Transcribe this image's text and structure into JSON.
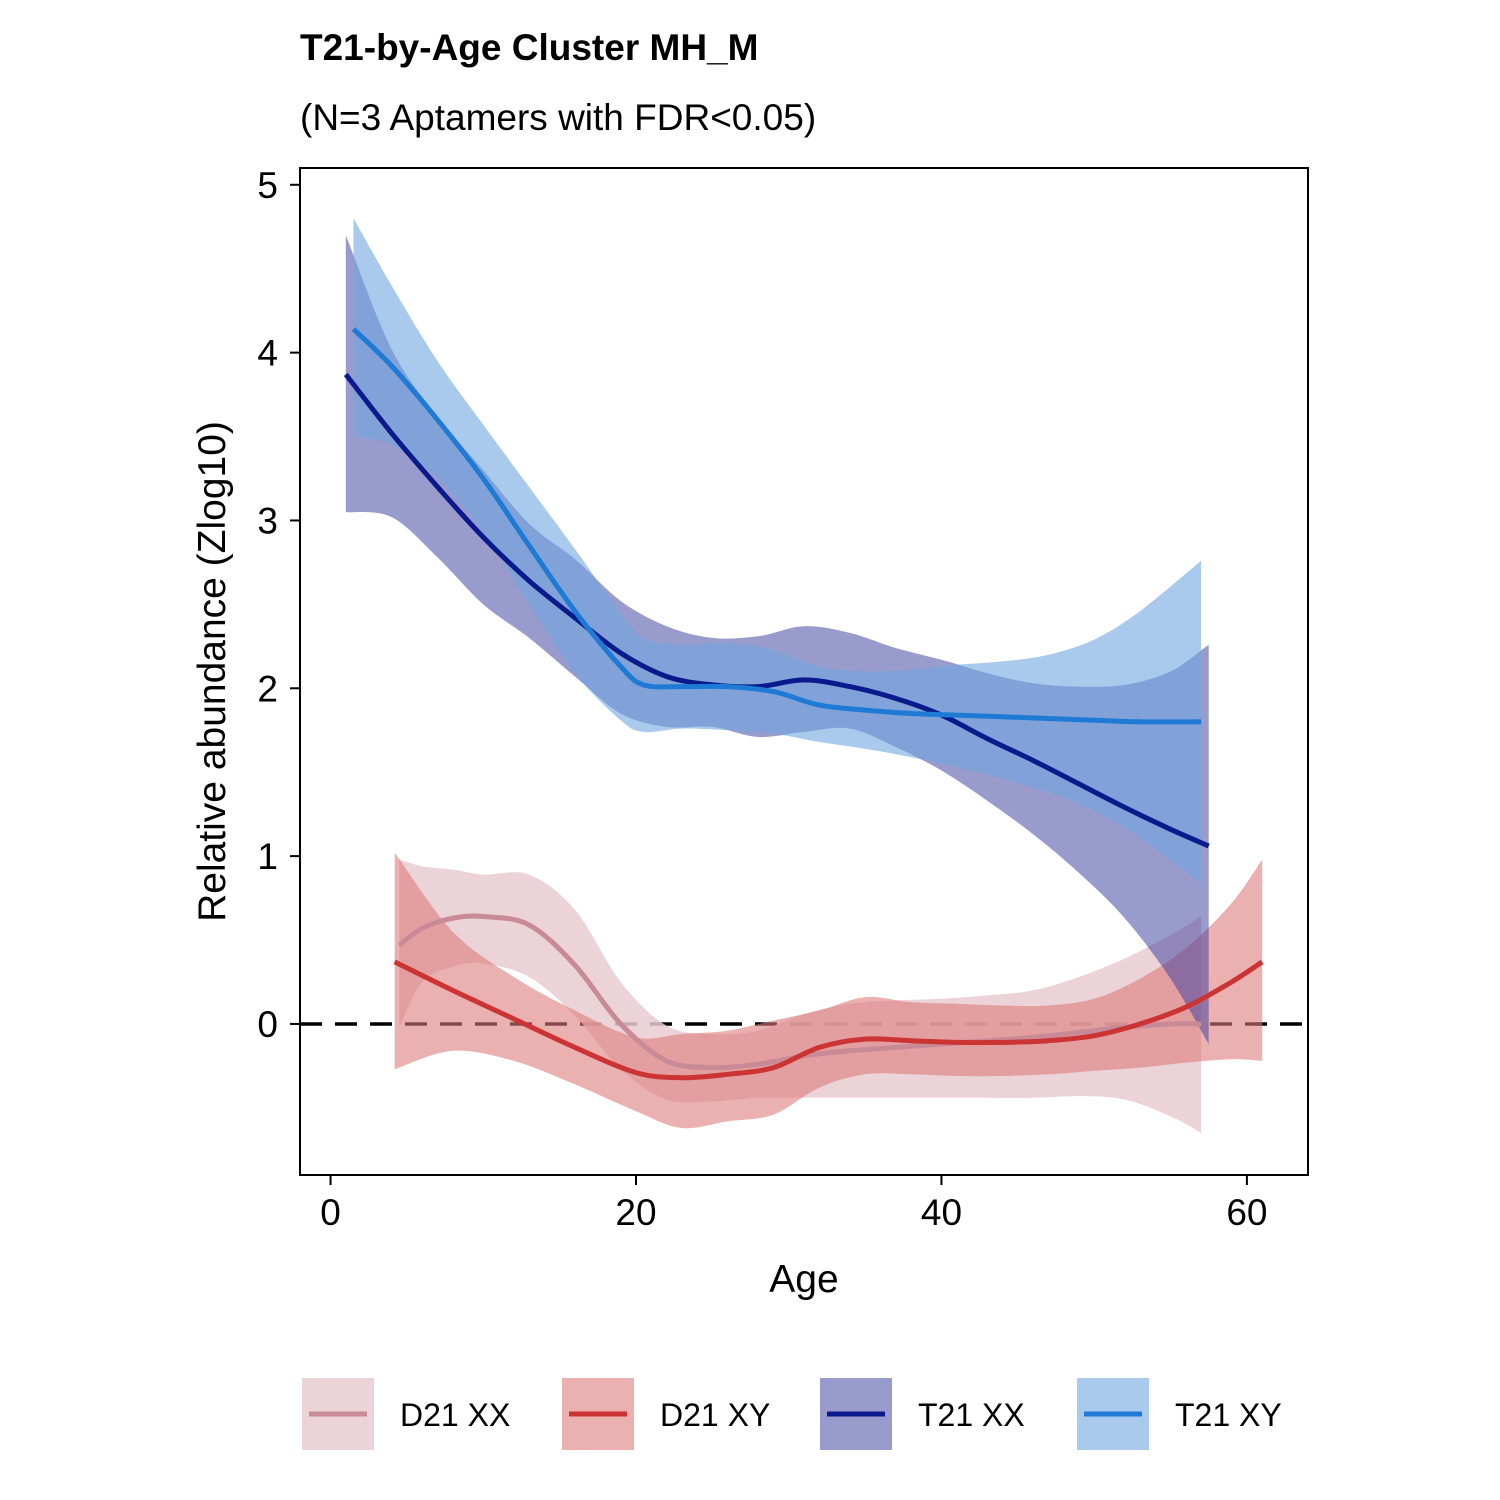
{
  "chart_data": {
    "type": "line",
    "title": "T21-by-Age Cluster MH_M",
    "subtitle": "(N=3 Aptamers with FDR<0.05)",
    "xlabel": "Age",
    "ylabel": "Relative abundance (Zlog10)",
    "xlim": [
      -2,
      64
    ],
    "ylim": [
      -0.9,
      5.1
    ],
    "xticks": [
      0,
      20,
      40,
      60
    ],
    "yticks": [
      0,
      1,
      2,
      3,
      4,
      5
    ],
    "reference_line": {
      "y": 0,
      "style": "dashed"
    },
    "grid": false,
    "legend_position": "bottom",
    "series": [
      {
        "name": "D21 XX",
        "color": "#C98A97",
        "band_color": "#E8CBD1",
        "band_opacity": 0.85,
        "x": [
          4.5,
          6,
          8,
          10,
          13,
          16,
          19,
          22,
          25,
          28,
          31,
          34,
          37,
          40,
          43,
          46,
          49,
          52,
          55,
          57
        ],
        "y": [
          0.47,
          0.57,
          0.63,
          0.64,
          0.59,
          0.35,
          0.0,
          -0.22,
          -0.26,
          -0.24,
          -0.19,
          -0.16,
          -0.14,
          -0.12,
          -0.1,
          -0.08,
          -0.05,
          -0.02,
          0.0,
          0.0
        ],
        "lower": [
          -0.02,
          0.25,
          0.34,
          0.36,
          0.28,
          0.05,
          -0.27,
          -0.45,
          -0.46,
          -0.44,
          -0.44,
          -0.44,
          -0.44,
          -0.44,
          -0.44,
          -0.44,
          -0.43,
          -0.45,
          -0.55,
          -0.65
        ],
        "upper": [
          0.98,
          0.94,
          0.92,
          0.89,
          0.89,
          0.68,
          0.25,
          -0.01,
          -0.06,
          -0.04,
          0.06,
          0.12,
          0.14,
          0.15,
          0.17,
          0.2,
          0.28,
          0.39,
          0.53,
          0.64
        ]
      },
      {
        "name": "D21 XY",
        "color": "#CC3333",
        "band_color": "#DE7B7B",
        "band_opacity": 0.6,
        "x": [
          4.2,
          8,
          12,
          16,
          20,
          23,
          26,
          29,
          32,
          35,
          38,
          41,
          44,
          47,
          50,
          53,
          56,
          59,
          61
        ],
        "y": [
          0.37,
          0.2,
          0.03,
          -0.14,
          -0.29,
          -0.32,
          -0.3,
          -0.26,
          -0.14,
          -0.09,
          -0.1,
          -0.11,
          -0.11,
          -0.1,
          -0.07,
          0.0,
          0.1,
          0.25,
          0.37
        ],
        "lower": [
          -0.27,
          -0.16,
          -0.22,
          -0.36,
          -0.52,
          -0.62,
          -0.58,
          -0.54,
          -0.38,
          -0.3,
          -0.3,
          -0.31,
          -0.31,
          -0.3,
          -0.28,
          -0.26,
          -0.23,
          -0.21,
          -0.22
        ],
        "upper": [
          1.02,
          0.55,
          0.28,
          0.08,
          -0.08,
          -0.06,
          -0.04,
          0.02,
          0.08,
          0.16,
          0.13,
          0.12,
          0.11,
          0.11,
          0.15,
          0.27,
          0.45,
          0.72,
          0.98
        ]
      },
      {
        "name": "T21 XX",
        "color": "#0A1A8C",
        "band_color": "#3D40A0",
        "band_opacity": 0.52,
        "x": [
          1,
          4,
          7,
          10,
          13,
          16,
          19,
          22,
          25,
          28,
          31,
          34,
          37,
          40,
          43,
          46,
          49,
          52,
          55,
          57.5
        ],
        "y": [
          3.87,
          3.52,
          3.2,
          2.9,
          2.64,
          2.42,
          2.21,
          2.07,
          2.02,
          2.01,
          2.05,
          2.01,
          1.94,
          1.84,
          1.7,
          1.57,
          1.43,
          1.29,
          1.16,
          1.06
        ],
        "lower": [
          3.05,
          3.02,
          2.78,
          2.5,
          2.3,
          2.07,
          1.85,
          1.77,
          1.77,
          1.71,
          1.74,
          1.76,
          1.65,
          1.51,
          1.33,
          1.13,
          0.9,
          0.63,
          0.27,
          -0.12
        ],
        "upper": [
          4.7,
          4.02,
          3.62,
          3.3,
          2.98,
          2.77,
          2.52,
          2.37,
          2.3,
          2.31,
          2.37,
          2.33,
          2.24,
          2.17,
          2.09,
          2.03,
          2.01,
          2.02,
          2.1,
          2.26
        ]
      },
      {
        "name": "T21 XY",
        "color": "#1F7AD6",
        "band_color": "#6FA7E0",
        "band_opacity": 0.6,
        "x": [
          1.5,
          4,
          7,
          10,
          13,
          16,
          19,
          20.5,
          23,
          26,
          29,
          32,
          35,
          38,
          41,
          44,
          47,
          50,
          53,
          57
        ],
        "y": [
          4.14,
          3.92,
          3.6,
          3.25,
          2.85,
          2.46,
          2.13,
          2.02,
          2.01,
          2.01,
          1.98,
          1.9,
          1.87,
          1.85,
          1.84,
          1.83,
          1.82,
          1.81,
          1.8,
          1.8
        ],
        "lower": [
          3.5,
          3.45,
          3.25,
          2.93,
          2.5,
          2.09,
          1.81,
          1.74,
          1.76,
          1.75,
          1.73,
          1.68,
          1.64,
          1.59,
          1.53,
          1.46,
          1.38,
          1.27,
          1.11,
          0.84
        ],
        "upper": [
          4.8,
          4.4,
          3.95,
          3.57,
          3.2,
          2.83,
          2.45,
          2.3,
          2.26,
          2.27,
          2.23,
          2.13,
          2.1,
          2.11,
          2.14,
          2.16,
          2.2,
          2.29,
          2.46,
          2.76
        ]
      }
    ]
  }
}
